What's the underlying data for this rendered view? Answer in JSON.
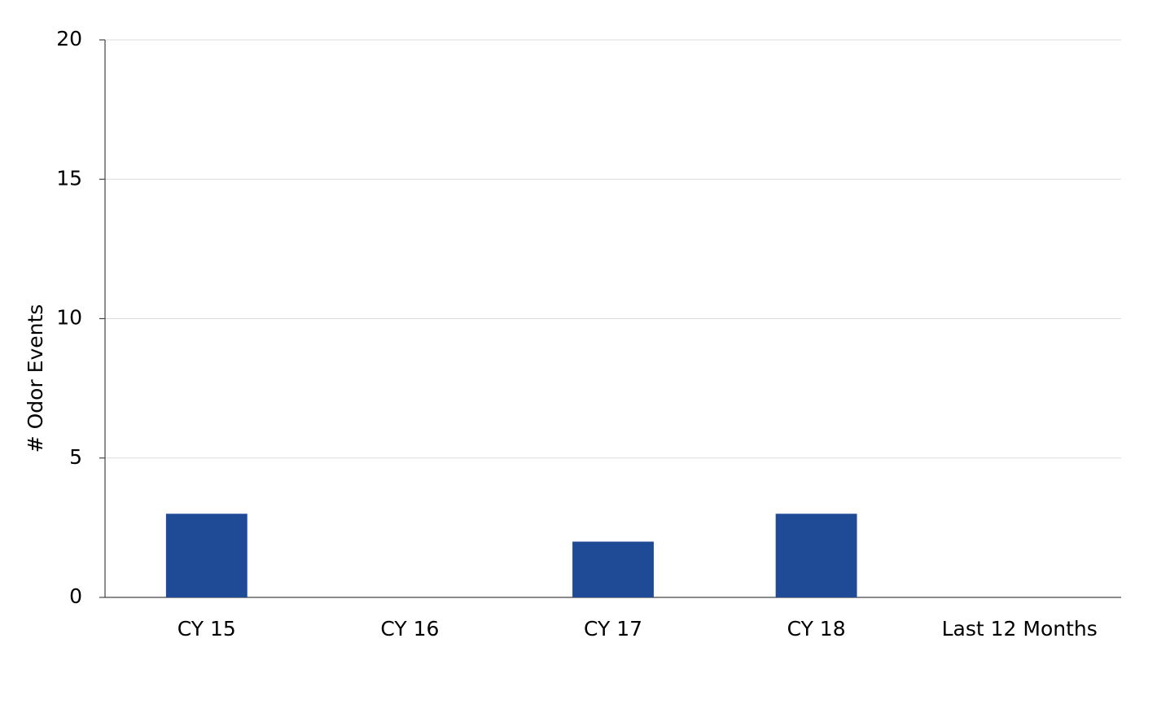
{
  "chart_data": {
    "type": "bar",
    "y_label": "# Odor Events",
    "categories": [
      "CY 15",
      "CY 16",
      "CY 17",
      "CY 18",
      "Last 12 Months"
    ],
    "values": [
      3,
      0,
      2,
      3,
      0
    ],
    "color": "#1f4a96",
    "ylim": [
      0,
      20
    ],
    "yticks": [
      0,
      5,
      10,
      15,
      20
    ],
    "grid": true
  }
}
